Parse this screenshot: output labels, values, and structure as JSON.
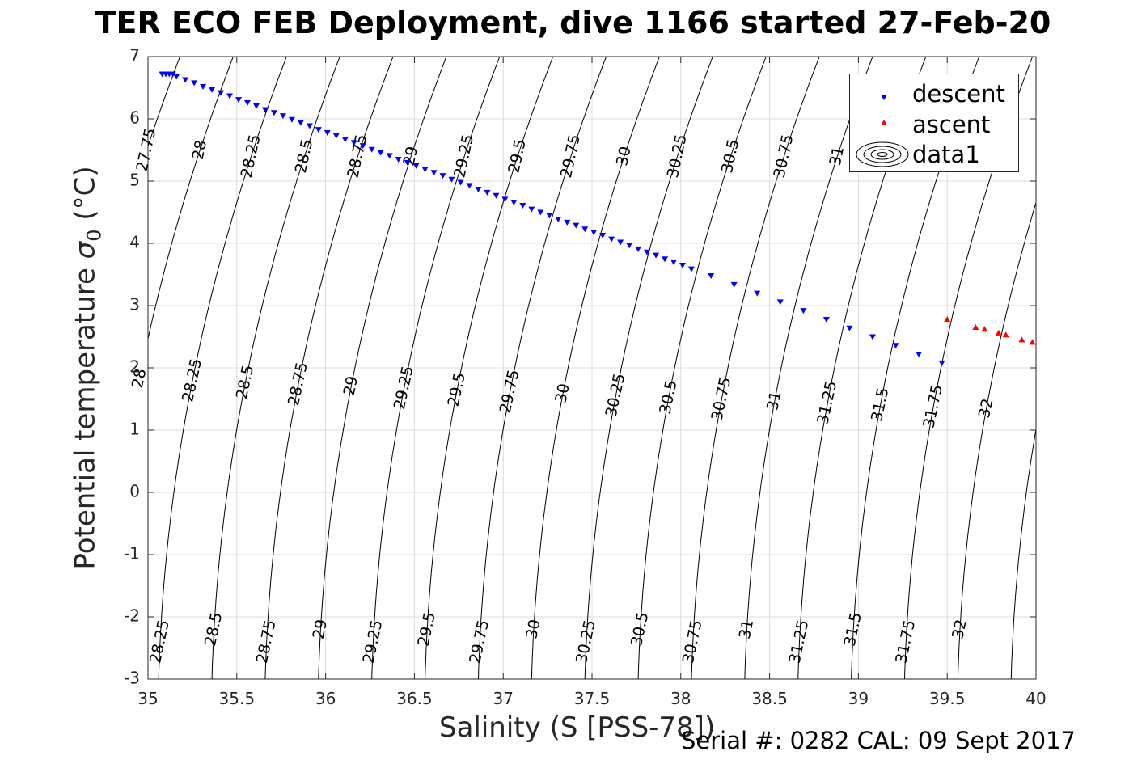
{
  "chart_data": {
    "type": "scatter",
    "title": "TER ECO FEB Deployment, dive 1166 started 27-Feb-20",
    "xlabel": "Salinity (S [PSS-78])",
    "ylabel_main": "Potential temperature ",
    "ylabel_sigma": "σ",
    "ylabel_sub": "0",
    "ylabel_unit": " (°C)",
    "xlim": [
      35,
      40
    ],
    "ylim": [
      -3,
      7
    ],
    "xticks": [
      "35",
      "35.5",
      "36",
      "36.5",
      "37",
      "37.5",
      "38",
      "38.5",
      "39",
      "39.5",
      "40"
    ],
    "yticks": [
      "-3",
      "-2",
      "-1",
      "0",
      "1",
      "2",
      "3",
      "4",
      "5",
      "6",
      "7"
    ],
    "grid": true,
    "legend_position": "top-right",
    "series": [
      {
        "name": "descent",
        "marker": "triangle-down",
        "color": "#0000ff",
        "points": [
          [
            35.08,
            6.72
          ],
          [
            35.1,
            6.72
          ],
          [
            35.12,
            6.72
          ],
          [
            35.14,
            6.72
          ],
          [
            35.16,
            6.68
          ],
          [
            35.21,
            6.63
          ],
          [
            35.26,
            6.58
          ],
          [
            35.31,
            6.52
          ],
          [
            35.36,
            6.47
          ],
          [
            35.41,
            6.42
          ],
          [
            35.46,
            6.37
          ],
          [
            35.51,
            6.31
          ],
          [
            35.56,
            6.26
          ],
          [
            35.61,
            6.21
          ],
          [
            35.66,
            6.15
          ],
          [
            35.71,
            6.1
          ],
          [
            35.76,
            6.05
          ],
          [
            35.81,
            5.99
          ],
          [
            35.86,
            5.94
          ],
          [
            35.91,
            5.89
          ],
          [
            35.96,
            5.83
          ],
          [
            36.01,
            5.78
          ],
          [
            36.06,
            5.73
          ],
          [
            36.11,
            5.67
          ],
          [
            36.16,
            5.62
          ],
          [
            36.21,
            5.57
          ],
          [
            36.26,
            5.51
          ],
          [
            36.31,
            5.46
          ],
          [
            36.36,
            5.41
          ],
          [
            36.41,
            5.35
          ],
          [
            36.46,
            5.3
          ],
          [
            36.51,
            5.25
          ],
          [
            36.56,
            5.19
          ],
          [
            36.61,
            5.14
          ],
          [
            36.66,
            5.09
          ],
          [
            36.71,
            5.03
          ],
          [
            36.76,
            4.98
          ],
          [
            36.81,
            4.93
          ],
          [
            36.86,
            4.87
          ],
          [
            36.91,
            4.82
          ],
          [
            36.96,
            4.77
          ],
          [
            37.01,
            4.71
          ],
          [
            37.06,
            4.66
          ],
          [
            37.11,
            4.61
          ],
          [
            37.16,
            4.55
          ],
          [
            37.21,
            4.5
          ],
          [
            37.26,
            4.45
          ],
          [
            37.31,
            4.39
          ],
          [
            37.36,
            4.34
          ],
          [
            37.41,
            4.29
          ],
          [
            37.46,
            4.23
          ],
          [
            37.51,
            4.18
          ],
          [
            37.56,
            4.13
          ],
          [
            37.61,
            4.07
          ],
          [
            37.66,
            4.02
          ],
          [
            37.71,
            3.97
          ],
          [
            37.76,
            3.91
          ],
          [
            37.81,
            3.86
          ],
          [
            37.86,
            3.81
          ],
          [
            37.91,
            3.75
          ],
          [
            37.96,
            3.7
          ],
          [
            38.01,
            3.65
          ],
          [
            38.06,
            3.59
          ],
          [
            38.17,
            3.48
          ],
          [
            38.3,
            3.34
          ],
          [
            38.43,
            3.2
          ],
          [
            38.56,
            3.06
          ],
          [
            38.69,
            2.92
          ],
          [
            38.82,
            2.78
          ],
          [
            38.95,
            2.64
          ],
          [
            39.08,
            2.5
          ],
          [
            39.21,
            2.36
          ],
          [
            39.34,
            2.22
          ],
          [
            39.47,
            2.08
          ]
        ]
      },
      {
        "name": "ascent",
        "marker": "triangle-up",
        "color": "#ff0000",
        "points": [
          [
            39.5,
            2.78
          ],
          [
            39.66,
            2.65
          ],
          [
            39.71,
            2.62
          ],
          [
            39.79,
            2.56
          ],
          [
            39.83,
            2.53
          ],
          [
            39.92,
            2.45
          ],
          [
            39.98,
            2.41
          ]
        ]
      }
    ],
    "contour_series_name": "data1",
    "contour_label_values": [
      "27.75",
      "28",
      "28.25",
      "28.5",
      "28.75",
      "29",
      "29.25",
      "29.5",
      "29.75",
      "30",
      "30.25",
      "30.5",
      "30.75",
      "31",
      "31.25",
      "31.5",
      "31.75",
      "32"
    ]
  },
  "footer": "Serial #: 0282  CAL: 09 Sept 2017"
}
